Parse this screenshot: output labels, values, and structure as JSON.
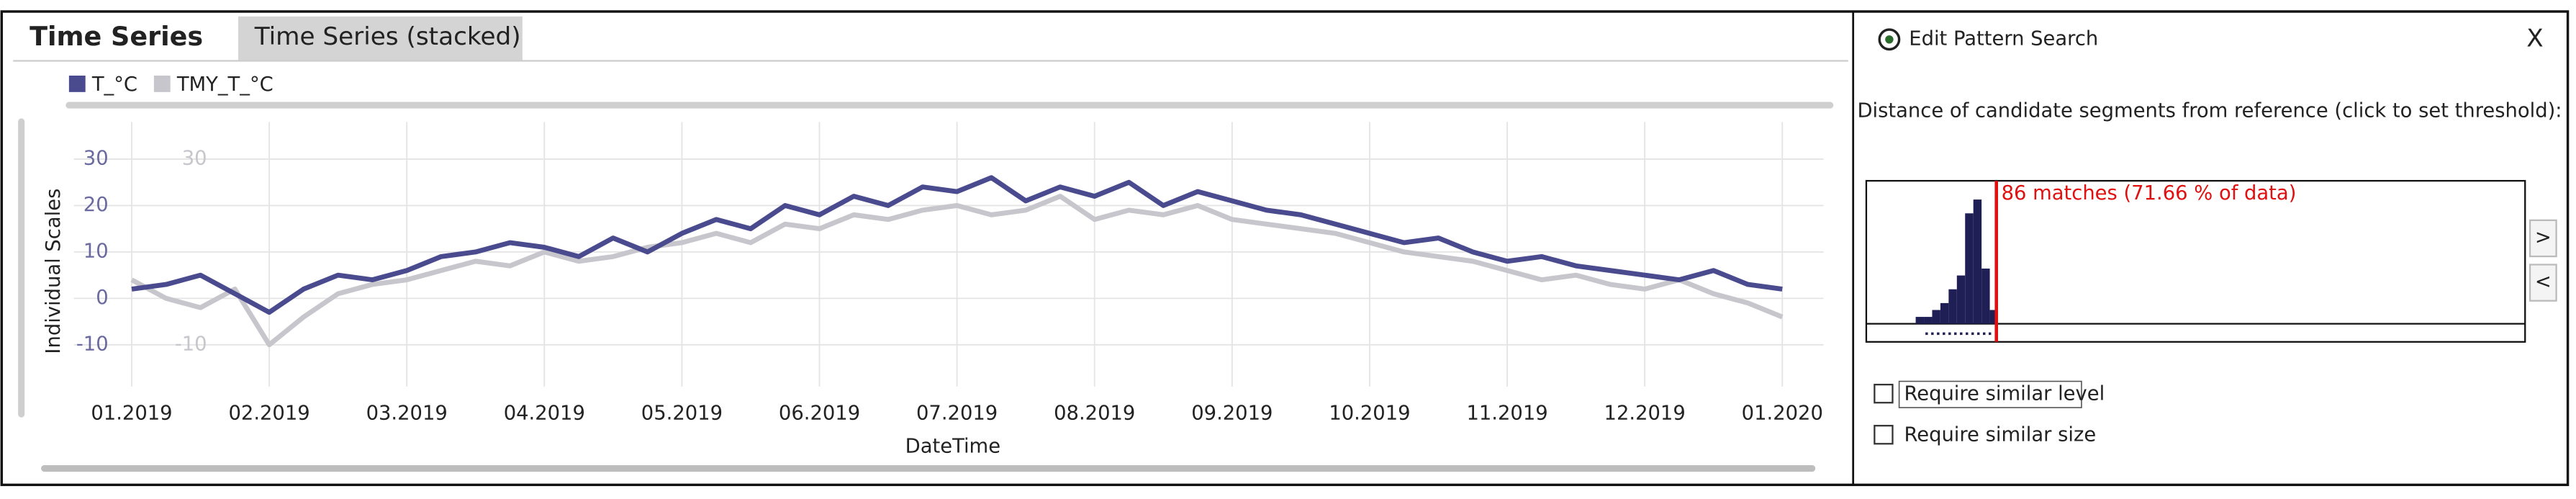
{
  "tabs": [
    "Time Series",
    "Time Series (stacked)"
  ],
  "chart_data": [
    {
      "type": "line",
      "x": [
        0,
        0.25,
        0.5,
        0.75,
        1,
        1.25,
        1.5,
        1.75,
        2,
        2.25,
        2.5,
        2.75,
        3,
        3.25,
        3.5,
        3.75,
        4,
        4.25,
        4.5,
        4.75,
        5,
        5.25,
        5.5,
        5.75,
        6,
        6.25,
        6.5,
        6.75,
        7,
        7.25,
        7.5,
        7.75,
        8,
        8.25,
        8.5,
        8.75,
        9,
        9.25,
        9.5,
        9.75,
        10,
        10.25,
        10.5,
        10.75,
        11,
        11.25,
        11.5,
        11.75,
        12
      ],
      "series": [
        {
          "name": "T_°C",
          "color": "#4a4a8f",
          "values": [
            2,
            3,
            5,
            1,
            -3,
            2,
            5,
            4,
            6,
            9,
            10,
            12,
            11,
            9,
            13,
            10,
            14,
            17,
            15,
            20,
            18,
            22,
            20,
            24,
            23,
            26,
            21,
            24,
            22,
            25,
            20,
            23,
            21,
            19,
            18,
            16,
            14,
            12,
            13,
            10,
            8,
            9,
            7,
            6,
            5,
            4,
            6,
            3,
            2
          ]
        },
        {
          "name": "TMY_T_°C",
          "color": "#c6c6cc",
          "axis": "y2",
          "values": [
            4,
            0,
            -2,
            2,
            -10,
            -4,
            1,
            3,
            4,
            6,
            8,
            7,
            10,
            8,
            9,
            11,
            12,
            14,
            12,
            16,
            15,
            18,
            17,
            19,
            20,
            18,
            19,
            22,
            17,
            19,
            18,
            20,
            17,
            16,
            15,
            14,
            12,
            10,
            9,
            8,
            6,
            4,
            5,
            3,
            2,
            4,
            1,
            -1,
            -4
          ]
        }
      ],
      "xlabel": "DateTime",
      "ylabel": "Individual Scales",
      "xlim": [
        -0.42,
        12.3
      ],
      "xticks": [
        {
          "value": 0,
          "label": "01.2019"
        },
        {
          "value": 1,
          "label": "02.2019"
        },
        {
          "value": 2,
          "label": "03.2019"
        },
        {
          "value": 3,
          "label": "04.2019"
        },
        {
          "value": 4,
          "label": "05.2019"
        },
        {
          "value": 5,
          "label": "06.2019"
        },
        {
          "value": 6,
          "label": "07.2019"
        },
        {
          "value": 7,
          "label": "08.2019"
        },
        {
          "value": 8,
          "label": "09.2019"
        },
        {
          "value": 9,
          "label": "10.2019"
        },
        {
          "value": 10,
          "label": "11.2019"
        },
        {
          "value": 11,
          "label": "12.2019"
        },
        {
          "value": 12,
          "label": "01.2020"
        }
      ],
      "ylim": [
        -19,
        38
      ],
      "yticks": [
        -10,
        0,
        10,
        20,
        30
      ],
      "y2lim": [
        -19,
        38
      ],
      "y2ticks": [
        -10,
        30
      ],
      "grid": true
    },
    {
      "type": "histogram",
      "bins": [
        6,
        7,
        8,
        9,
        10,
        11,
        12,
        13,
        14,
        15,
        16
      ],
      "counts": [
        1,
        1,
        2,
        3,
        5,
        7,
        16,
        18,
        8,
        2
      ],
      "color": "#1f1f55",
      "xlim": [
        0,
        80
      ],
      "ylim": [
        0,
        20
      ],
      "threshold": 15.8,
      "threshold_color": "#e01010",
      "annotation": "86 matches (71.66 % of data)"
    }
  ],
  "panel": {
    "title": "Edit Pattern Search",
    "close": "X",
    "prompt": "Distance of candidate segments from reference (click to set threshold):",
    "buttons": [
      ">",
      "<"
    ],
    "checkboxes": [
      "Require similar level",
      "Require similar size"
    ]
  }
}
